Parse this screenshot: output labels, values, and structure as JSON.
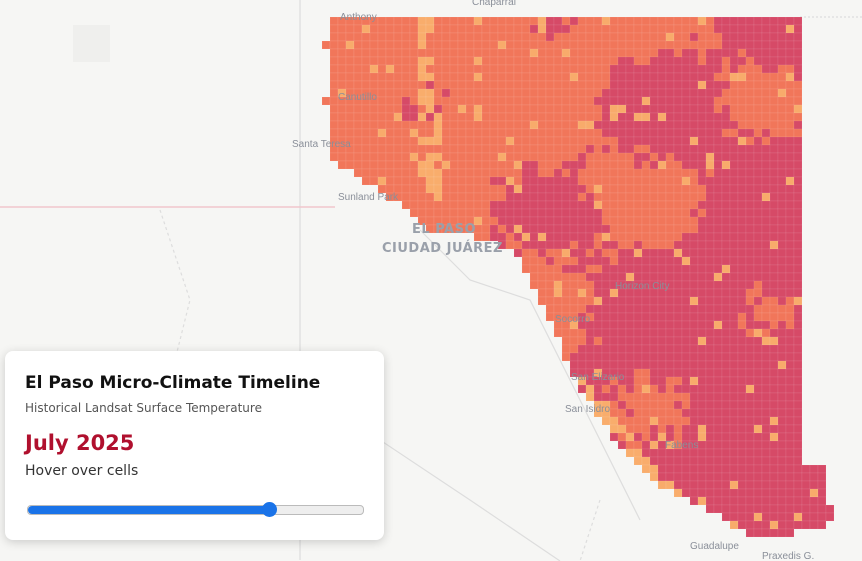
{
  "map": {
    "labels": [
      "Chaparral",
      "Anthony",
      "Canutillo",
      "Santa Teresa",
      "Sunland Park",
      "EL PASO",
      "CIUDAD JUÁREZ",
      "Horizon City",
      "Socorro",
      "San Elizario",
      "San Isidro",
      "Fabens",
      "Guadalupe",
      "Praxedis G."
    ]
  },
  "panel": {
    "title": "El Paso Micro-Climate Timeline",
    "subtitle": "Historical Landsat Surface Temperature",
    "date": "July 2025",
    "hint": "Hover over cells"
  }
}
